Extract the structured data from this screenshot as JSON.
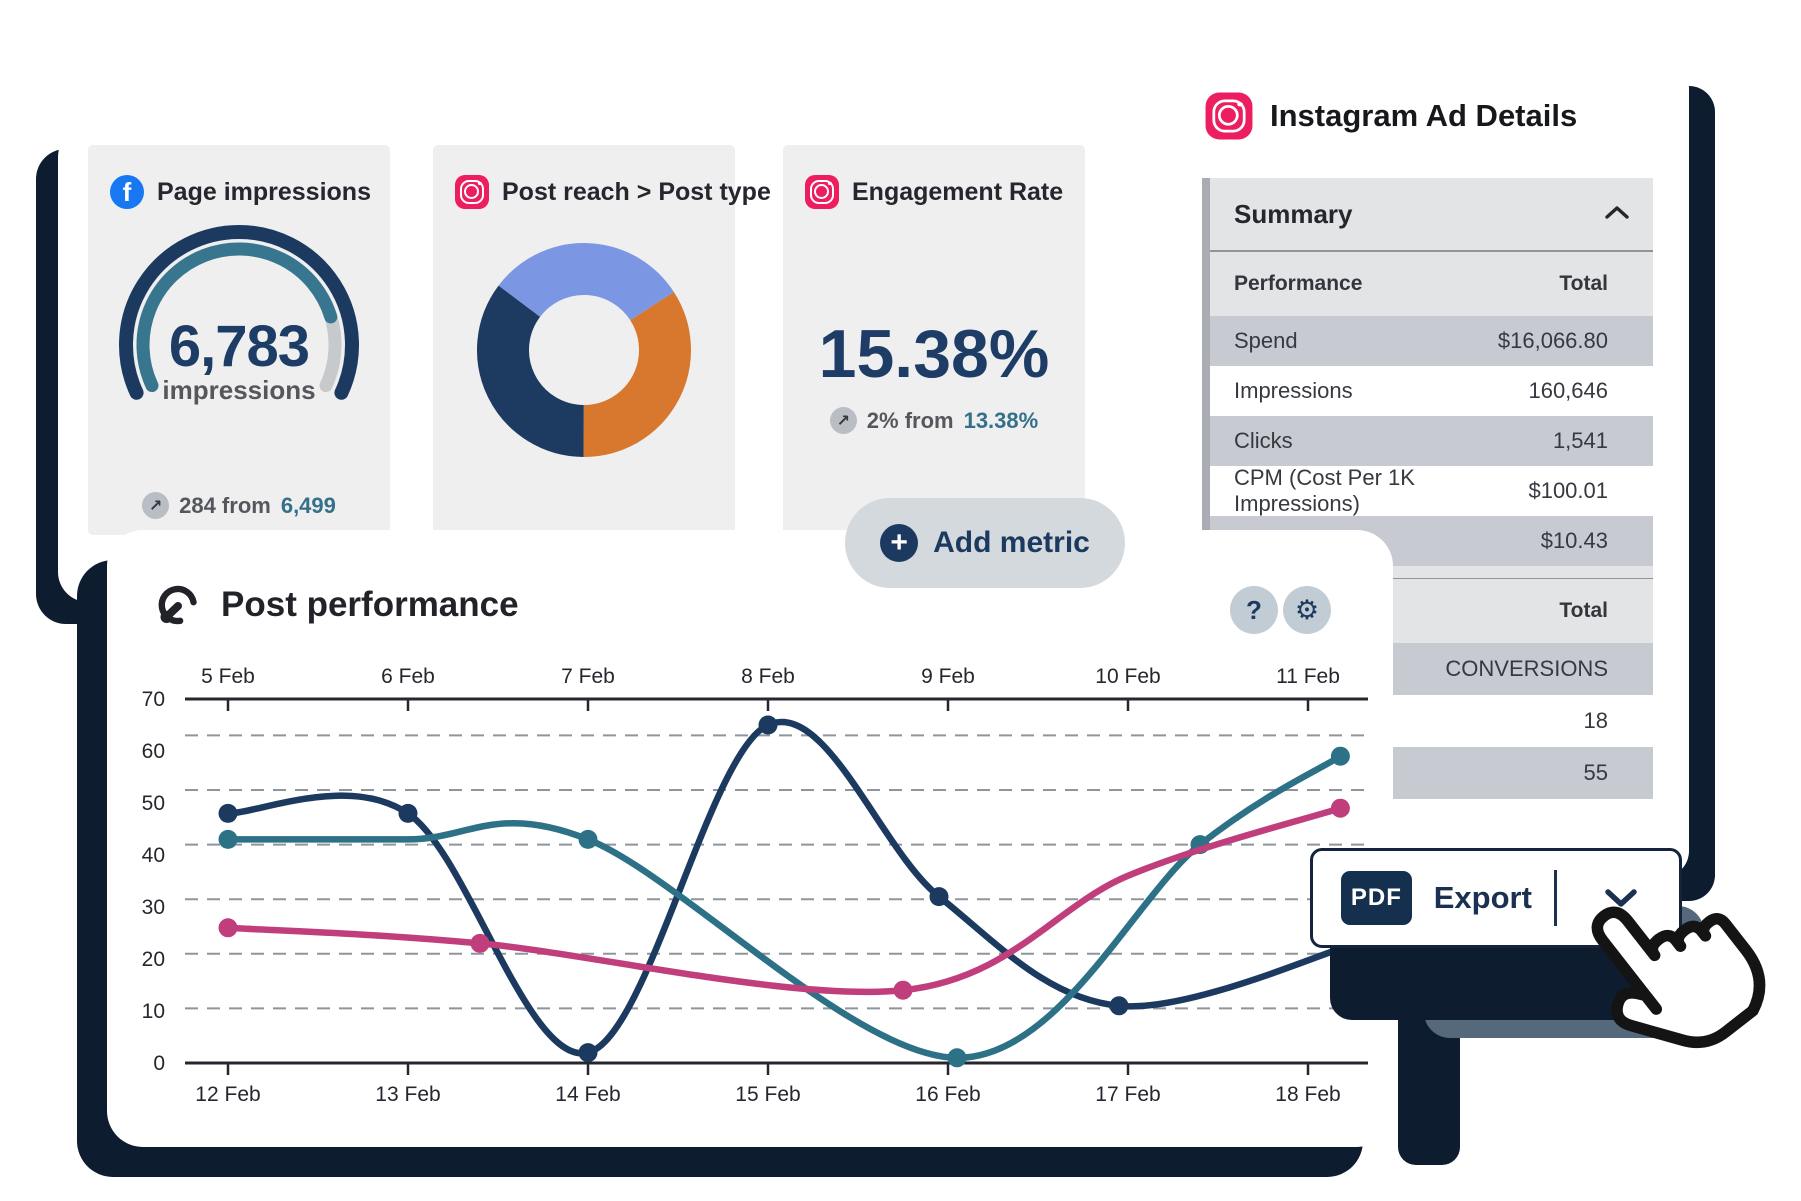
{
  "icons": {
    "help": "?",
    "gear": "⚙",
    "plus": "+",
    "arrow_up_right": "↗",
    "facebook_letter": "f"
  },
  "colors": {
    "navy": "#1c3a60",
    "teal": "#35708a",
    "pink_line": "#c13e7d",
    "donut_blue": "#7b97e3",
    "donut_orange": "#d8782f",
    "donut_navy": "#1d3b60",
    "shadow": "#0e1c30",
    "facebook_blue": "#1877f2",
    "instagram_pink": "#ec1e5f",
    "row_gray": "#c7cbd1",
    "header_gray": "#e3e4e6"
  },
  "metrics_panel": {
    "add_metric_label": "Add metric"
  },
  "instagram_panel": {
    "title": "Instagram Ad Details",
    "sections": [
      {
        "header": "Summary",
        "collapsed": false,
        "columns": [
          "Performance",
          "Total"
        ],
        "rows": [
          {
            "label": "Spend",
            "value": "$16,066.80"
          },
          {
            "label": "Impressions",
            "value": "160,646"
          },
          {
            "label": "Clicks",
            "value": "1,541"
          },
          {
            "label": "CPM (Cost Per 1K Impressions)",
            "value": "$100.01"
          },
          {
            "label": "",
            "value": "$10.43"
          }
        ]
      },
      {
        "header_right": "Total",
        "rows": [
          {
            "label": "",
            "value": "CONVERSIONS"
          },
          {
            "label": "",
            "value": "18"
          },
          {
            "label": "",
            "value": "55"
          }
        ]
      }
    ]
  },
  "export_button": {
    "badge": "PDF",
    "label": "Export"
  },
  "chart_data": [
    {
      "id": "page-impressions-gauge",
      "type": "gauge",
      "platform": "facebook",
      "title": "Page impressions",
      "value": 6783,
      "value_display": "6,783",
      "unit_label": "impressions",
      "delta_text": "284 from",
      "delta_value": "6,499",
      "arc_start_deg": -115,
      "arc_end_deg": 115,
      "progress_end_deg": 73,
      "colors": {
        "outer": "#1c3a60",
        "progress": "#38758f",
        "track": "#c6cacd"
      }
    },
    {
      "id": "post-reach-donut",
      "type": "pie",
      "platform": "instagram",
      "title": "Post reach > Post type",
      "start_angle_from_top_deg": -53,
      "slices": [
        {
          "name": "slice-1",
          "color": "#7b97e3",
          "percent": 30.6
        },
        {
          "name": "slice-2",
          "color": "#d8782f",
          "percent": 34.2
        },
        {
          "name": "slice-3",
          "color": "#1d3b60",
          "percent": 35.2
        }
      ]
    },
    {
      "id": "engagement-rate-kpi",
      "type": "kpi",
      "platform": "instagram",
      "title": "Engagement Rate",
      "value_display": "15.38%",
      "delta_text": "2% from",
      "delta_value": "13.38%"
    },
    {
      "id": "post-performance-line",
      "type": "line",
      "title": "Post performance",
      "x_axis_top": [
        "5 Feb",
        "6 Feb",
        "7 Feb",
        "8 Feb",
        "9 Feb",
        "10 Feb",
        "11 Feb"
      ],
      "x_axis_bottom": [
        "12 Feb",
        "13 Feb",
        "14 Feb",
        "15 Feb",
        "16 Feb",
        "17 Feb",
        "18 Feb"
      ],
      "y_ticks": [
        0,
        10,
        20,
        30,
        40,
        50,
        60,
        70
      ],
      "ylim": [
        0,
        70
      ],
      "grid": "dashed-horizontal",
      "legend": "none",
      "series": [
        {
          "name": "series-navy",
          "color": "#1c3a60",
          "points": [
            [
              0,
              48
            ],
            [
              1,
              48
            ],
            [
              2,
              2
            ],
            [
              3,
              65
            ],
            [
              3.95,
              32
            ],
            [
              4.95,
              11
            ],
            [
              6.35,
              24
            ]
          ],
          "markers": [
            [
              0,
              48
            ],
            [
              1,
              48
            ],
            [
              2,
              2
            ],
            [
              3,
              65
            ],
            [
              3.95,
              32
            ],
            [
              4.95,
              11
            ]
          ]
        },
        {
          "name": "series-teal",
          "color": "#2d7187",
          "points": [
            [
              0,
              43
            ],
            [
              1,
              43
            ],
            [
              2,
              43
            ],
            [
              4.05,
              1
            ],
            [
              5.4,
              42
            ],
            [
              6.18,
              59
            ]
          ],
          "markers": [
            [
              0,
              43
            ],
            [
              2,
              43
            ],
            [
              4.05,
              1
            ],
            [
              5.4,
              42
            ],
            [
              6.18,
              59
            ]
          ]
        },
        {
          "name": "series-pink",
          "color": "#c13e7d",
          "points": [
            [
              0,
              26
            ],
            [
              1.4,
              23
            ],
            [
              3.75,
              14
            ],
            [
              5,
              36
            ],
            [
              6.18,
              49
            ]
          ],
          "markers": [
            [
              0,
              26
            ],
            [
              1.4,
              23
            ],
            [
              3.75,
              14
            ],
            [
              6.18,
              49
            ]
          ]
        }
      ]
    }
  ]
}
